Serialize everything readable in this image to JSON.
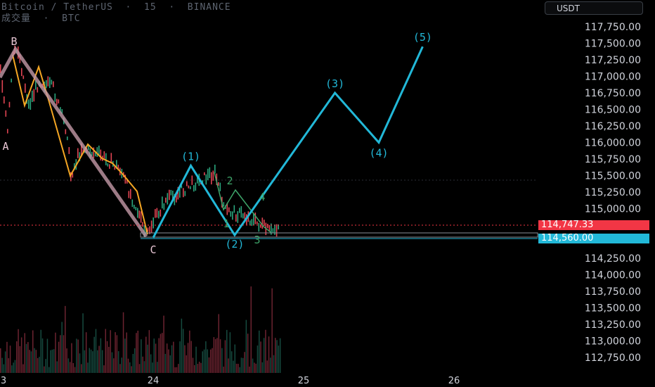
{
  "header": {
    "symbol_line": "Bitcoin / TetherUS  ·  15  ·  BINANCE",
    "volume_line": "成交量  ·  BTC"
  },
  "currency_button": "USDT",
  "price_axis": {
    "ticks": [
      "117,750.00",
      "117,500.00",
      "117,250.00",
      "117,000.00",
      "116,750.00",
      "116,500.00",
      "116,250.00",
      "116,000.00",
      "115,750.00",
      "115,500.00",
      "115,250.00",
      "115,000.00",
      "114,250.00",
      "114,000.00",
      "113,750.00",
      "113,500.00",
      "113,250.00",
      "113,000.00",
      "112,750.00"
    ]
  },
  "price_tags": {
    "last_price": {
      "label": "114,747.33",
      "color": "#f23645"
    },
    "support": {
      "label": "114,560.00",
      "color": "#22b8d8"
    }
  },
  "time_axis": {
    "labels": [
      "3",
      "24",
      "25",
      "26"
    ]
  },
  "chart_data": {
    "type": "line",
    "title": "Bitcoin / TetherUS · 15 · BINANCE",
    "y_unit": "USDT",
    "ylim": [
      112650,
      118050
    ],
    "projection": {
      "name": "Elliott wave projection",
      "color": "#22b8d8",
      "points": [
        {
          "x": "24 00:00",
          "y": 114560,
          "label": "C"
        },
        {
          "x": "24 06:00",
          "y": 115650,
          "label": "(1)"
        },
        {
          "x": "24 13:00",
          "y": 114600,
          "label": "(2)"
        },
        {
          "x": "25 05:00",
          "y": 116750,
          "label": "(3)"
        },
        {
          "x": "25 12:00",
          "y": 116000,
          "label": "(4)"
        },
        {
          "x": "25 19:00",
          "y": 117450,
          "label": "(5)"
        }
      ]
    },
    "annotations": [
      "B",
      "A",
      "C",
      "(1)",
      "(2)",
      "(3)",
      "(4)",
      "(5)",
      "1",
      "2",
      "3",
      "4"
    ],
    "horizontal_lines": [
      114747.33,
      114560
    ]
  }
}
